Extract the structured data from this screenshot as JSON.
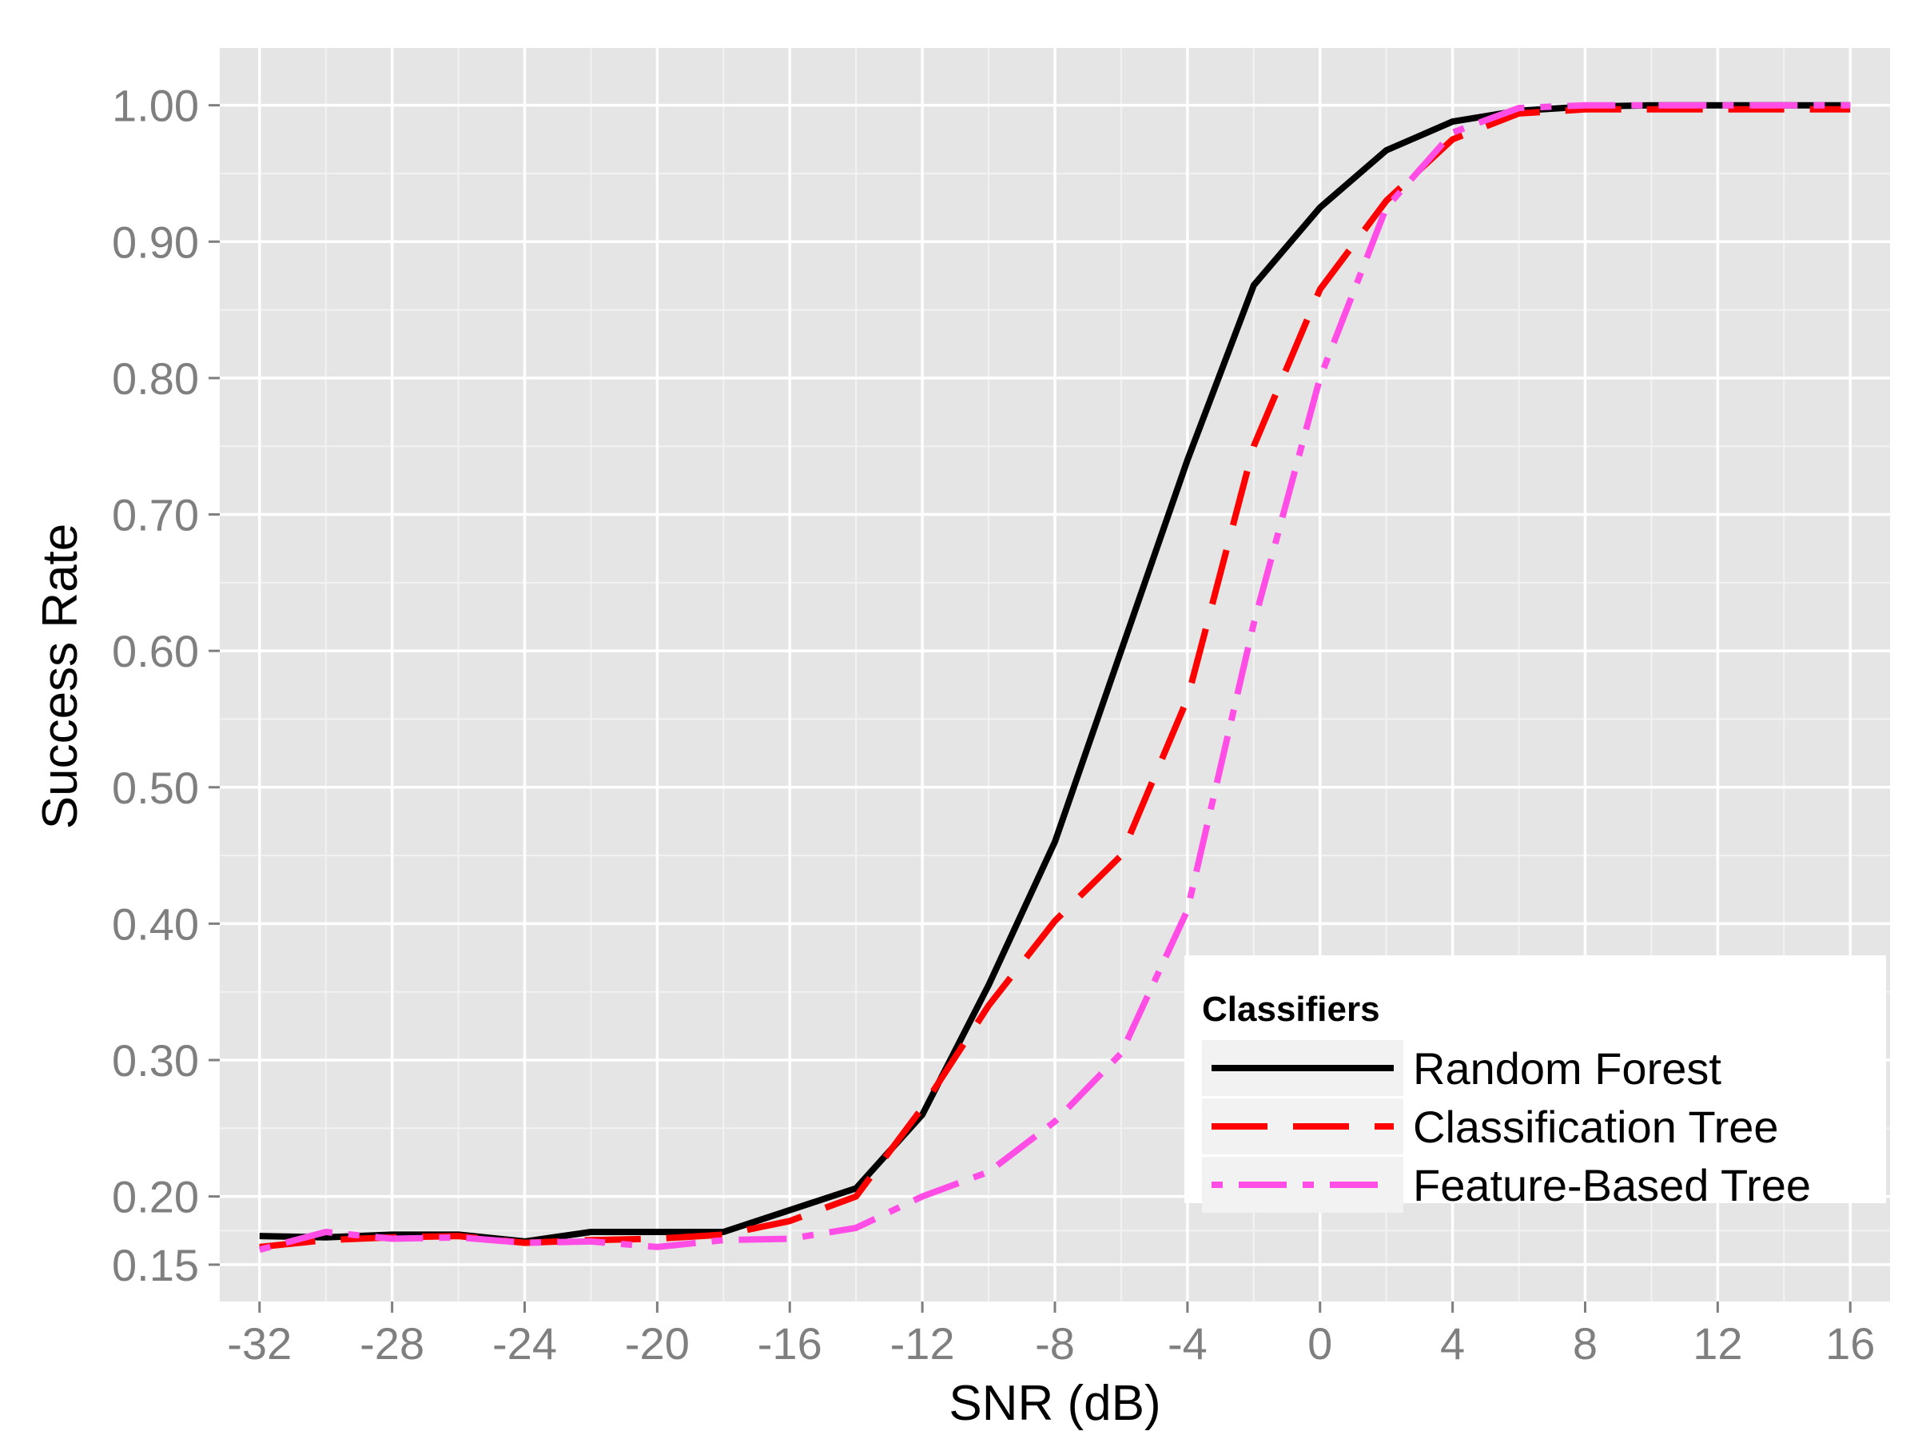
{
  "chart_data": {
    "type": "line",
    "title": "",
    "xlabel": "SNR (dB)",
    "ylabel": "Success Rate",
    "xlim": [
      -33.2,
      17.2
    ],
    "ylim": [
      0.123,
      1.042
    ],
    "x_ticks": [
      -32,
      -28,
      -24,
      -20,
      -16,
      -12,
      -8,
      -4,
      0,
      4,
      8,
      12,
      16
    ],
    "x_tick_labels": [
      "-32",
      "-28",
      "-24",
      "-20",
      "-16",
      "-12",
      "-8",
      "-4",
      "0",
      "4",
      "8",
      "12",
      "16"
    ],
    "y_ticks": [
      0.15,
      0.2,
      0.3,
      0.4,
      0.5,
      0.6,
      0.7,
      0.8,
      0.9,
      1.0
    ],
    "y_tick_labels": [
      "0.15",
      "0.20",
      "0.30",
      "0.40",
      "0.50",
      "0.60",
      "0.70",
      "0.80",
      "0.90",
      "1.00"
    ],
    "grid": true,
    "legend": {
      "title": "Classifiers",
      "position": "bottom-right"
    },
    "x": [
      -32,
      -30,
      -28,
      -26,
      -24,
      -22,
      -20,
      -18,
      -16,
      -14,
      -12,
      -10,
      -8,
      -6,
      -4,
      -2,
      0,
      2,
      4,
      6,
      8,
      10,
      12,
      14,
      16
    ],
    "series": [
      {
        "name": "Random Forest",
        "color": "#000000",
        "dash": "solid",
        "values": [
          0.171,
          0.17,
          0.172,
          0.172,
          0.167,
          0.174,
          0.174,
          0.174,
          0.19,
          0.206,
          0.26,
          0.355,
          0.46,
          0.6,
          0.74,
          0.868,
          0.925,
          0.967,
          0.988,
          0.996,
          0.999,
          1.0,
          1.0,
          1.0,
          1.0
        ]
      },
      {
        "name": "Classification Tree",
        "color": "#ff0000",
        "dash": "longdash",
        "values": [
          0.163,
          0.168,
          0.17,
          0.171,
          0.166,
          0.168,
          0.169,
          0.172,
          0.182,
          0.2,
          0.265,
          0.34,
          0.402,
          0.45,
          0.565,
          0.75,
          0.865,
          0.93,
          0.975,
          0.994,
          0.997,
          0.997,
          0.997,
          0.997,
          0.997
        ]
      },
      {
        "name": "Feature-Based Tree",
        "color": "#ff4de6",
        "dash": "dotdash",
        "values": [
          0.161,
          0.174,
          0.169,
          0.17,
          0.166,
          0.167,
          0.163,
          0.168,
          0.169,
          0.177,
          0.2,
          0.218,
          0.255,
          0.305,
          0.41,
          0.62,
          0.8,
          0.925,
          0.98,
          0.998,
          1.0,
          1.0,
          1.0,
          1.0,
          1.0
        ]
      }
    ]
  }
}
